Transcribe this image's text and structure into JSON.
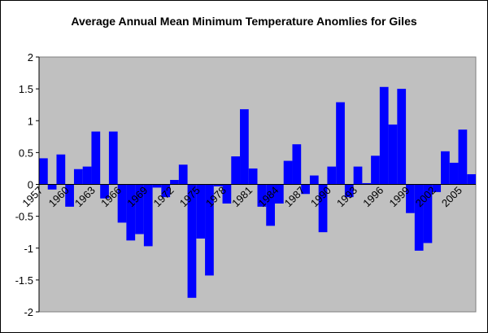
{
  "chart_data": {
    "type": "bar",
    "title": "Average Annual Mean Minimum Temperature Anomlies for Giles",
    "categories": [
      "1957",
      null,
      null,
      "1960",
      null,
      null,
      "1963",
      null,
      null,
      "1966",
      null,
      null,
      "1969",
      null,
      null,
      "1972",
      null,
      null,
      "1975",
      null,
      null,
      "1978",
      null,
      null,
      "1981",
      null,
      null,
      "1984",
      null,
      null,
      "1987",
      null,
      null,
      "1990",
      null,
      null,
      "1993",
      null,
      null,
      "1996",
      null,
      null,
      "1999",
      null,
      null,
      "2002",
      null,
      null,
      "2005",
      null
    ],
    "values": [
      0.41,
      -0.08,
      0.47,
      -0.35,
      0.24,
      0.28,
      0.83,
      -0.22,
      0.83,
      -0.6,
      -0.88,
      -0.78,
      -0.97,
      -0.05,
      -0.2,
      0.07,
      0.31,
      -1.78,
      -0.85,
      -1.43,
      -0.03,
      -0.3,
      0.44,
      1.18,
      0.25,
      -0.35,
      -0.65,
      -0.3,
      0.37,
      0.63,
      -0.15,
      0.14,
      -0.75,
      0.28,
      1.29,
      -0.2,
      0.28,
      0.02,
      0.45,
      1.53,
      0.94,
      1.5,
      -0.45,
      -1.04,
      -0.92,
      -0.12,
      0.52,
      0.34,
      0.86,
      0.16
    ],
    "color": "#0000ff",
    "ylim": [
      -2,
      2
    ],
    "yticks": [
      -2,
      -1.5,
      -1,
      -0.5,
      0,
      0.5,
      1,
      1.5,
      2
    ],
    "grid": false
  }
}
